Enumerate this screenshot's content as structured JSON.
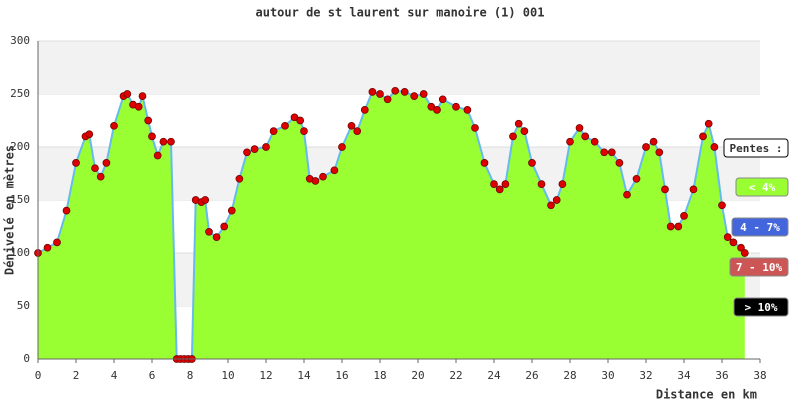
{
  "chart_data": {
    "type": "area",
    "title": "autour de st laurent sur manoire (1) 001",
    "x_label": "Distance en km",
    "y_label": "Dénivelé en mètres",
    "x": [
      0,
      0.5,
      1,
      1.5,
      2,
      2.5,
      2.7,
      3,
      3.3,
      3.6,
      4,
      4.5,
      4.7,
      5,
      5.3,
      5.5,
      5.8,
      6,
      6.3,
      6.6,
      7,
      7.3,
      7.5,
      7.7,
      7.9,
      8.1,
      8.3,
      8.6,
      8.8,
      9,
      9.4,
      9.8,
      10.2,
      10.6,
      11,
      11.4,
      12,
      12.4,
      13,
      13.5,
      13.8,
      14,
      14.3,
      14.6,
      15,
      15.6,
      16,
      16.5,
      16.8,
      17.2,
      17.6,
      18,
      18.4,
      18.8,
      19.3,
      19.8,
      20.3,
      20.7,
      21,
      21.3,
      22,
      22.6,
      23,
      23.5,
      24,
      24.3,
      24.6,
      25,
      25.3,
      25.6,
      26,
      26.5,
      27,
      27.3,
      27.6,
      28,
      28.5,
      28.8,
      29.3,
      29.8,
      30.2,
      30.6,
      31,
      31.5,
      32,
      32.4,
      32.7,
      33,
      33.3,
      33.7,
      34,
      34.5,
      35,
      35.3,
      35.6,
      36,
      36.3,
      36.6,
      37,
      37.2
    ],
    "values": [
      100,
      105,
      110,
      140,
      185,
      210,
      212,
      180,
      172,
      185,
      220,
      248,
      250,
      240,
      238,
      248,
      225,
      210,
      192,
      205,
      205,
      0,
      0,
      0,
      0,
      0,
      150,
      148,
      150,
      120,
      115,
      125,
      140,
      170,
      195,
      198,
      200,
      215,
      220,
      228,
      225,
      215,
      170,
      168,
      172,
      178,
      200,
      220,
      215,
      235,
      252,
      250,
      245,
      253,
      252,
      248,
      250,
      238,
      235,
      245,
      238,
      235,
      218,
      185,
      165,
      160,
      165,
      210,
      222,
      215,
      185,
      165,
      145,
      150,
      165,
      205,
      218,
      210,
      205,
      195,
      195,
      185,
      155,
      170,
      200,
      205,
      195,
      160,
      125,
      125,
      135,
      160,
      210,
      222,
      200,
      145,
      115,
      110,
      105,
      100
    ],
    "fill_color": "#99ff33",
    "line_color": "#66bbee",
    "marker_color": "#dd0000",
    "xlim": [
      0,
      38
    ],
    "xticks": [
      0,
      2,
      4,
      6,
      8,
      10,
      12,
      14,
      16,
      18,
      20,
      22,
      24,
      26,
      28,
      30,
      32,
      34,
      36,
      38
    ],
    "ylim": [
      0,
      300
    ],
    "yticks": [
      0,
      50,
      100,
      150,
      200,
      250,
      300
    ],
    "grid": true,
    "legend": {
      "title": "Pentes :",
      "items": [
        {
          "label": "< 4%",
          "color": "#99ff33"
        },
        {
          "label": "4 - 7%",
          "color": "#4466dd"
        },
        {
          "label": "7 - 10%",
          "color": "#cc5555"
        },
        {
          "label": "> 10%",
          "color": "#000000"
        }
      ]
    }
  }
}
